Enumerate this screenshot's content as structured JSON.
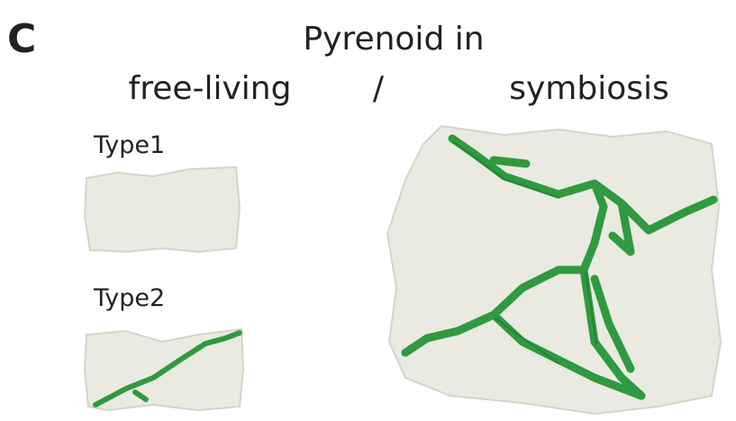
{
  "panel_label": "C",
  "title": {
    "line1": "Pyrenoid in",
    "left": "free-living",
    "separator": "/",
    "right": "symbiosis"
  },
  "types": [
    {
      "label": "Type1"
    },
    {
      "label": "Type2"
    }
  ]
}
